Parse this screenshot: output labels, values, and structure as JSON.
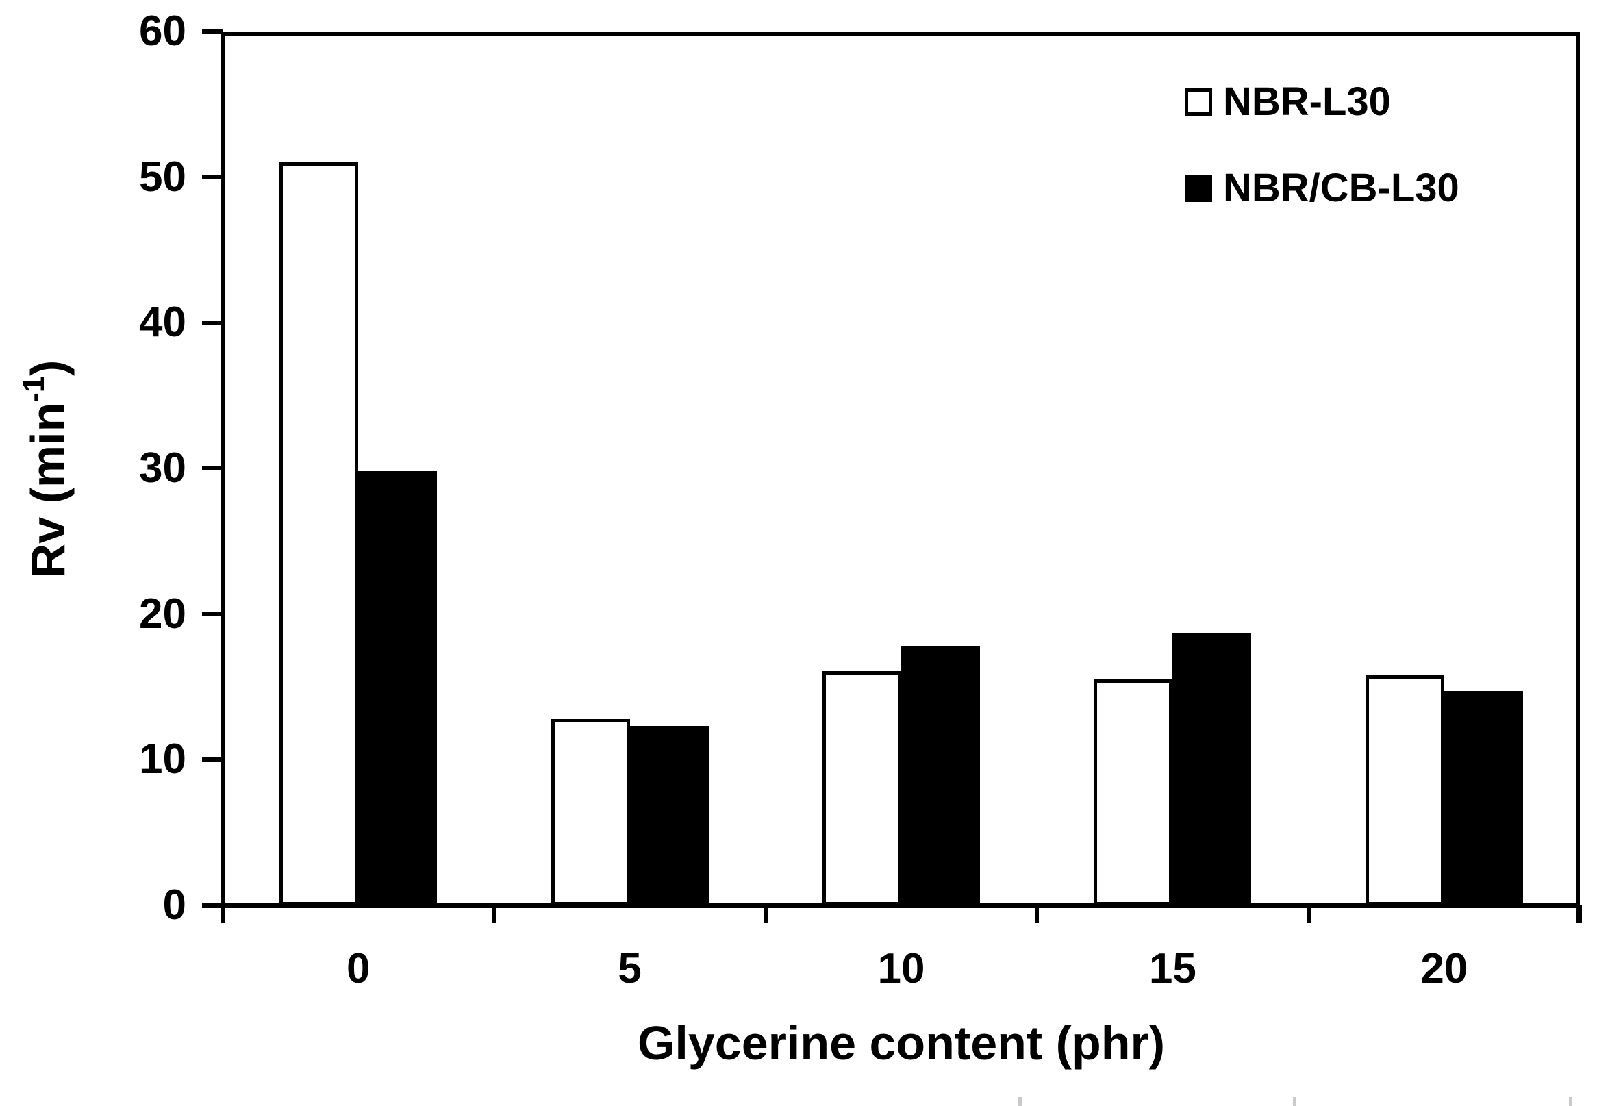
{
  "chart_data": {
    "type": "bar",
    "title": "",
    "categories": [
      "0",
      "5",
      "10",
      "15",
      "20"
    ],
    "series": [
      {
        "name": "NBR-L30",
        "fill": "#ffffff",
        "outline": "#000000",
        "values": [
          51.0,
          12.8,
          16.1,
          15.5,
          15.8
        ]
      },
      {
        "name": "NBR/CB-L30",
        "fill": "#000000",
        "outline": "#000000",
        "values": [
          29.8,
          12.3,
          17.8,
          18.7,
          14.7
        ]
      }
    ],
    "xlabel": "Glycerine content (phr)",
    "ylabel": "Rv (min⁻¹)",
    "ylabel_parts": {
      "prefix": "Rv (min",
      "superscript": "-1",
      "suffix": ")"
    },
    "ylim": [
      0,
      60
    ],
    "yticks": [
      "0",
      "10",
      "20",
      "30",
      "40",
      "50",
      "60"
    ],
    "ytick_step": 10,
    "grid": false,
    "legend_position": "top-right-inside",
    "axis_color": "#000000",
    "background": "#ffffff"
  }
}
